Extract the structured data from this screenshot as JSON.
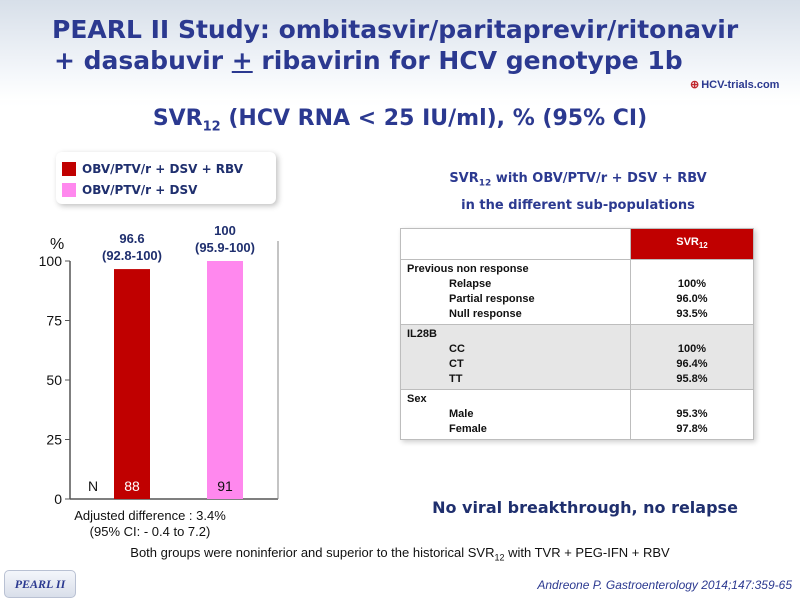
{
  "header": {
    "title_line1": "PEARL II Study: ombitasvir/paritaprevir/ritonavir",
    "title_line2_pre": "+ dasabuvir ",
    "title_line2_ul": "+",
    "title_line2_post": " ribavirin for HCV genotype 1b",
    "logo_text": "HCV-trials.com"
  },
  "subtitle": {
    "main": "SVR",
    "sub": "12",
    "rest": " (HCV RNA < 25 IU/ml), % (95% CI)"
  },
  "legend": [
    {
      "label": "OBV/PTV/r + DSV + RBV",
      "color": "#c00000"
    },
    {
      "label": "OBV/PTV/r + DSV",
      "color": "#ff88ee"
    }
  ],
  "chart_data": {
    "type": "bar",
    "categories": [
      "OBV/PTV/r + DSV + RBV",
      "OBV/PTV/r + DSV"
    ],
    "values": [
      96.6,
      100
    ],
    "value_labels": [
      "96.6",
      "100"
    ],
    "ci_labels": [
      "(92.8-100)",
      "(95.9-100)"
    ],
    "n_label": "N",
    "n_values": [
      "88",
      "91"
    ],
    "colors": [
      "#c00000",
      "#ff88ee"
    ],
    "ylabel": "%",
    "ylim": [
      0,
      100
    ],
    "yticks": [
      0,
      25,
      50,
      75,
      100
    ]
  },
  "caption": {
    "line1": "Adjusted difference : 3.4%",
    "line2": "(95% CI: - 0.4 to 7.2)"
  },
  "footer_note": {
    "pre": "Both groups were noninferior and superior to the historical SVR",
    "sub": "12",
    "post": " with TVR + PEG-IFN + RBV"
  },
  "table": {
    "title_main": "SVR",
    "title_sub": "12",
    "title_rest": " with OBV/PTV/r + DSV + RBV",
    "title_line2": "in the different sub-populations",
    "header_main": "SVR",
    "header_sub": "12",
    "groups": [
      {
        "name": "Previous non response",
        "rows": [
          {
            "label": "Relapse",
            "value": "100%"
          },
          {
            "label": "Partial response",
            "value": "96.0%"
          },
          {
            "label": "Null response",
            "value": "93.5%"
          }
        ]
      },
      {
        "name": "IL28B",
        "rows": [
          {
            "label": "CC",
            "value": "100%"
          },
          {
            "label": "CT",
            "value": "96.4%"
          },
          {
            "label": "TT",
            "value": "95.8%"
          }
        ]
      },
      {
        "name": "Sex",
        "rows": [
          {
            "label": "Male",
            "value": "95.3%"
          },
          {
            "label": "Female",
            "value": "97.8%"
          }
        ]
      }
    ]
  },
  "no_breakthrough": "No viral breakthrough, no relapse",
  "badge": "PEARL II",
  "reference": "Andreone P. Gastroenterology 2014;147:359-65"
}
